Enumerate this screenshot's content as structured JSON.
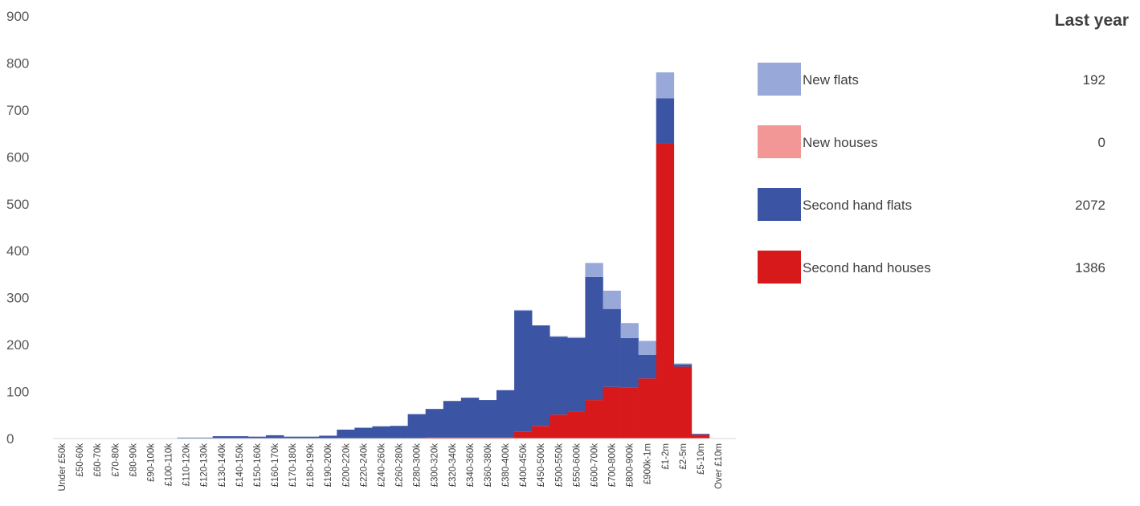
{
  "chart_data": {
    "type": "bar",
    "stacked": true,
    "categories": [
      "Under £50k",
      "£50-60k",
      "£60-70k",
      "£70-80k",
      "£80-90k",
      "£90-100k",
      "£100-110k",
      "£110-120k",
      "£120-130k",
      "£130-140k",
      "£140-150k",
      "£150-160k",
      "£160-170k",
      "£170-180k",
      "£180-190k",
      "£190-200k",
      "£200-220k",
      "£220-240k",
      "£240-260k",
      "£260-280k",
      "£280-300k",
      "£300-320k",
      "£320-340k",
      "£340-360k",
      "£360-380k",
      "£380-400k",
      "£400-450k",
      "£450-500k",
      "£500-550k",
      "£550-600k",
      "£600-700k",
      "£700-800k",
      "£800-900k",
      "£900k-1m",
      "£1-2m",
      "£2-5m",
      "£5-10m",
      "Over £10m"
    ],
    "series": [
      {
        "name": "Second hand houses",
        "color": "#d7191c",
        "values": [
          0,
          0,
          0,
          0,
          0,
          0,
          0,
          0,
          0,
          0,
          0,
          0,
          0,
          0,
          0,
          0,
          0,
          0,
          0,
          0,
          0,
          3,
          3,
          2,
          3,
          2,
          15,
          27,
          51,
          58,
          82,
          110,
          108,
          128,
          628,
          153,
          8,
          0
        ]
      },
      {
        "name": "New houses",
        "color": "#f29696",
        "values": [
          0,
          0,
          0,
          0,
          0,
          0,
          0,
          0,
          0,
          0,
          0,
          0,
          0,
          0,
          0,
          0,
          0,
          0,
          0,
          0,
          0,
          0,
          0,
          0,
          0,
          0,
          0,
          0,
          0,
          0,
          0,
          0,
          0,
          0,
          0,
          0,
          0,
          0
        ]
      },
      {
        "name": "Second hand flats",
        "color": "#3b54a4",
        "values": [
          0,
          0,
          0,
          0,
          0,
          0,
          0,
          2,
          2,
          5,
          5,
          4,
          7,
          4,
          4,
          6,
          19,
          23,
          26,
          27,
          52,
          60,
          77,
          85,
          79,
          101,
          257,
          214,
          166,
          156,
          262,
          166,
          106,
          50,
          97,
          5,
          2,
          0
        ]
      },
      {
        "name": "New flats",
        "color": "#97a8d9",
        "values": [
          0,
          0,
          0,
          0,
          0,
          0,
          0,
          0,
          0,
          0,
          0,
          0,
          0,
          0,
          0,
          0,
          0,
          0,
          0,
          0,
          0,
          0,
          0,
          0,
          0,
          0,
          2,
          0,
          1,
          2,
          30,
          39,
          32,
          30,
          55,
          2,
          0,
          0
        ]
      }
    ],
    "title": "",
    "xlabel": "",
    "ylabel": "",
    "ylim": [
      0,
      900
    ],
    "yticks": [
      "0",
      "100",
      "200",
      "300",
      "400",
      "500",
      "600",
      "700",
      "800",
      "900"
    ],
    "grid": false,
    "legend": {
      "placement": "right",
      "title": "Last year",
      "entries": [
        {
          "name": "New flats",
          "value": "192",
          "color": "#97a8d9"
        },
        {
          "name": "New houses",
          "value": "0",
          "color": "#f29696"
        },
        {
          "name": "Second hand flats",
          "value": "2072",
          "color": "#3b54a4"
        },
        {
          "name": "Second hand houses",
          "value": "1386",
          "color": "#d7191c"
        }
      ]
    }
  }
}
